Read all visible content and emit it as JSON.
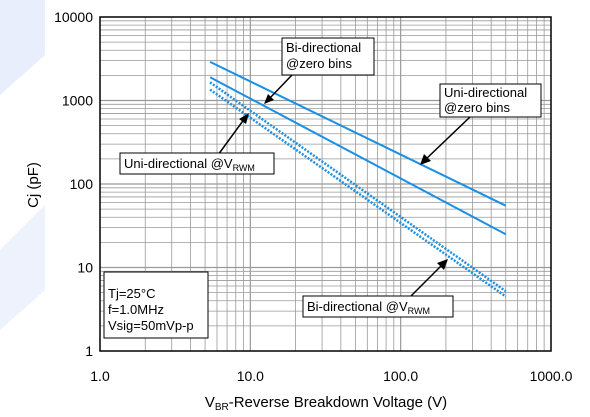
{
  "chart_data": {
    "type": "line",
    "xscale": "log",
    "yscale": "log",
    "xlim": [
      1,
      1000
    ],
    "ylim": [
      1,
      10000
    ],
    "grid": true,
    "x_ticks": [
      "1.0",
      "10.0",
      "100.0",
      "1000.0"
    ],
    "y_ticks": [
      "1",
      "10",
      "100",
      "1000",
      "10000"
    ],
    "xlabel": {
      "pre": "V",
      "sub": "BR",
      "post": "-Reverse Breakdown Voltage (V)"
    },
    "ylabel": "Cj (pF)",
    "series": [
      {
        "key": "bi_zero",
        "dashed": false,
        "color": "#1a8fe6",
        "x": [
          5.4,
          500
        ],
        "y": [
          2900,
          55
        ]
      },
      {
        "key": "uni_zero",
        "dashed": false,
        "color": "#1a8fe6",
        "x": [
          5.4,
          500
        ],
        "y": [
          1900,
          25
        ]
      },
      {
        "key": "uni_vrwm",
        "dashed": true,
        "color": "#1a8fe6",
        "x": [
          5.4,
          500
        ],
        "y": [
          1650,
          5.2
        ]
      },
      {
        "key": "bi_vrwm",
        "dashed": true,
        "color": "#1a8fe6",
        "x": [
          5.4,
          500
        ],
        "y": [
          1350,
          4.5
        ]
      }
    ],
    "annotations": [
      {
        "key": "bi_zero_label",
        "lines": [
          "Bi-directional",
          "@zero bins"
        ]
      },
      {
        "key": "uni_zero_label",
        "lines": [
          "Uni-directional",
          "@zero bins"
        ]
      },
      {
        "key": "uni_vrwm_label",
        "main": "Uni-directional @V",
        "sub": "RWM"
      },
      {
        "key": "bi_vrwm_label",
        "main": "Bi-directional @V",
        "sub": "RWM"
      }
    ],
    "conditions": [
      "Tj=25°C",
      "f=1.0MHz",
      "Vsig=50mVp-p"
    ]
  },
  "colors": {
    "accent": "#1a8fe6",
    "grid": "#9a9a9a",
    "watermark": "#e8eefc"
  }
}
